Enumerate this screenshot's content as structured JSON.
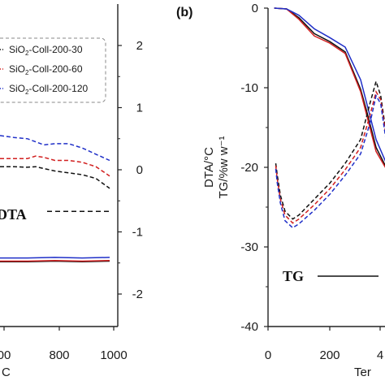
{
  "colors": {
    "series_30": "#111111",
    "series_60": "#d11f1f",
    "series_120": "#1f2fc8",
    "axis": "#222222"
  },
  "chart_data": [
    {
      "panel": "a",
      "type": "line",
      "x_ticks": [
        "00",
        "800",
        "1000"
      ],
      "x_label_fragment": "C",
      "right_y_ticks": [
        "2",
        "1",
        "0",
        "-1",
        "-2"
      ],
      "right_y_range": [
        -2.4,
        2.4
      ],
      "legend": [
        "SiO2-Coll-200-30",
        "SiO2-Coll-200-60",
        "SiO2-Coll-200-120"
      ],
      "legend_placement": "top-left",
      "annotations": {
        "dta": "DTA"
      },
      "series": [
        {
          "name": "SiO2-Coll-200-30",
          "curve": "DTA",
          "style": "dashed",
          "x": [
            600,
            650,
            700,
            730,
            760,
            800,
            850,
            900,
            950,
            1000
          ],
          "values": [
            0.05,
            0.05,
            0.04,
            0.05,
            0.02,
            -0.02,
            -0.05,
            -0.08,
            -0.14,
            -0.3
          ]
        },
        {
          "name": "SiO2-Coll-200-60",
          "curve": "DTA",
          "style": "dashed",
          "x": [
            600,
            650,
            700,
            730,
            760,
            800,
            850,
            900,
            950,
            1000
          ],
          "values": [
            0.18,
            0.18,
            0.18,
            0.22,
            0.2,
            0.15,
            0.15,
            0.12,
            0.05,
            -0.1
          ]
        },
        {
          "name": "SiO2-Coll-200-120",
          "curve": "DTA",
          "style": "dashed",
          "x": [
            600,
            650,
            700,
            730,
            760,
            800,
            850,
            900,
            950,
            1000
          ],
          "values": [
            0.55,
            0.52,
            0.5,
            0.45,
            0.4,
            0.42,
            0.42,
            0.35,
            0.25,
            0.15
          ]
        },
        {
          "name": "SiO2-Coll-200-30",
          "curve": "TG",
          "style": "solid",
          "x": [
            600,
            700,
            800,
            900,
            1000
          ],
          "values": [
            -1.48,
            -1.48,
            -1.47,
            -1.48,
            -1.47
          ]
        },
        {
          "name": "SiO2-Coll-200-60",
          "curve": "TG",
          "style": "solid",
          "x": [
            600,
            700,
            800,
            900,
            1000
          ],
          "values": [
            -1.47,
            -1.47,
            -1.46,
            -1.47,
            -1.46
          ]
        },
        {
          "name": "SiO2-Coll-200-120",
          "curve": "TG",
          "style": "solid",
          "x": [
            600,
            700,
            800,
            900,
            1000
          ],
          "values": [
            -1.42,
            -1.42,
            -1.41,
            -1.42,
            -1.41
          ]
        }
      ],
      "reference_line_y": -0.67
    },
    {
      "panel": "b",
      "type": "line",
      "x_ticks": [
        "0",
        "200",
        "4"
      ],
      "x_label_fragment": "Ter",
      "y_ticks": [
        "0",
        "-10",
        "-20",
        "-30",
        "-40"
      ],
      "ylim": [
        -40,
        0
      ],
      "y_label_line1": "DTA/°C",
      "y_label_line2": "TG/%w w⁻¹",
      "annotations": {
        "tg": "TG"
      },
      "series": [
        {
          "name": "SiO2-Coll-200-30",
          "curve": "TG",
          "style": "solid",
          "x": [
            20,
            60,
            100,
            150,
            200,
            250,
            300,
            320,
            350,
            380,
            400
          ],
          "values": [
            0,
            -0.1,
            -1.2,
            -3.2,
            -4.2,
            -5.5,
            -10.2,
            -13,
            -17.5,
            -19.8,
            -20
          ]
        },
        {
          "name": "SiO2-Coll-200-60",
          "curve": "TG",
          "style": "solid",
          "x": [
            20,
            60,
            100,
            150,
            200,
            250,
            300,
            320,
            350,
            380,
            400
          ],
          "values": [
            0,
            -0.1,
            -1.4,
            -3.5,
            -4.4,
            -5.7,
            -10.5,
            -13.5,
            -18,
            -20,
            -20
          ]
        },
        {
          "name": "SiO2-Coll-200-120",
          "curve": "TG",
          "style": "solid",
          "x": [
            20,
            60,
            100,
            150,
            200,
            250,
            300,
            320,
            350,
            380,
            400
          ],
          "values": [
            0,
            -0.1,
            -0.9,
            -2.6,
            -3.7,
            -4.9,
            -9,
            -12,
            -16.5,
            -19.2,
            -20
          ]
        },
        {
          "name": "SiO2-Coll-200-30",
          "curve": "DTA",
          "style": "dashed",
          "x": [
            25,
            30,
            40,
            55,
            80,
            100,
            150,
            200,
            250,
            300,
            330,
            350,
            365,
            380,
            400
          ],
          "values": [
            -19.5,
            -21,
            -23.5,
            -25.5,
            -26.5,
            -26,
            -24,
            -22,
            -19.5,
            -16.5,
            -12,
            -9.2,
            -11,
            -15,
            -19
          ]
        },
        {
          "name": "SiO2-Coll-200-60",
          "curve": "DTA",
          "style": "dashed",
          "x": [
            25,
            30,
            40,
            55,
            80,
            100,
            150,
            200,
            250,
            300,
            330,
            350,
            365,
            380,
            400
          ],
          "values": [
            -19.8,
            -21.5,
            -24,
            -26,
            -27,
            -26.5,
            -24.7,
            -22.7,
            -20.3,
            -17.5,
            -13.5,
            -10.5,
            -11.5,
            -15.5,
            -19.5
          ]
        },
        {
          "name": "SiO2-Coll-200-120",
          "curve": "DTA",
          "style": "dashed",
          "x": [
            25,
            30,
            40,
            55,
            80,
            100,
            150,
            200,
            250,
            300,
            330,
            350,
            365,
            380,
            400
          ],
          "values": [
            -20.2,
            -22,
            -24.5,
            -26.7,
            -27.6,
            -27.1,
            -25.4,
            -23.4,
            -21,
            -18.3,
            -14.5,
            -11,
            -12,
            -16,
            -20
          ]
        }
      ]
    }
  ]
}
